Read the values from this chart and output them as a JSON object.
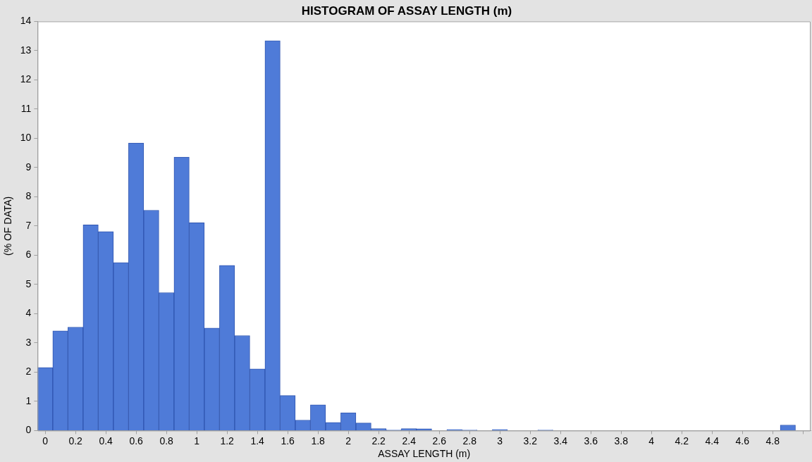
{
  "chart_data": {
    "type": "histogram",
    "title": "HISTOGRAM OF ASSAY LENGTH (m)",
    "xlabel": "ASSAY LENGTH (m)",
    "ylabel": "(% OF DATA)",
    "bins": [
      -0.05,
      0.05,
      0.15,
      0.25,
      0.35,
      0.45,
      0.55,
      0.65,
      0.75,
      0.85,
      0.95,
      1.05,
      1.15,
      1.25,
      1.35,
      1.45,
      1.55,
      1.65,
      1.75,
      1.85,
      1.95,
      2.05,
      2.15,
      2.25,
      2.35,
      2.45,
      2.55,
      2.65,
      2.75,
      2.85,
      2.95,
      3.05,
      3.15,
      3.25,
      3.35,
      3.45,
      3.55,
      3.65,
      3.75,
      3.85,
      3.95,
      4.05,
      4.15,
      4.25,
      4.35,
      4.45,
      4.55,
      4.65,
      4.75,
      4.85,
      4.95
    ],
    "values": [
      2.16,
      3.41,
      3.54,
      7.04,
      6.81,
      5.75,
      9.84,
      7.54,
      4.72,
      9.36,
      7.11,
      3.51,
      5.65,
      3.25,
      2.11,
      13.34,
      1.2,
      0.36,
      0.88,
      0.28,
      0.61,
      0.26,
      0.07,
      0.02,
      0.07,
      0.06,
      0,
      0.04,
      0.02,
      0,
      0.04,
      0,
      0,
      0.02,
      0,
      0,
      0,
      0,
      0,
      0,
      0,
      0,
      0,
      0,
      0,
      0,
      0,
      0,
      0,
      0.19
    ],
    "color": "#4f7bd8",
    "xlim": [
      -0.05,
      5.05
    ],
    "xticks": [
      0,
      0.2,
      0.4,
      0.6,
      0.8,
      1,
      1.2,
      1.4,
      1.6,
      1.8,
      2,
      2.2,
      2.4,
      2.6,
      2.8,
      3,
      3.2,
      3.4,
      3.6,
      3.8,
      4,
      4.2,
      4.4,
      4.6,
      4.8,
      {
        "value": 5,
        "label": null
      }
    ],
    "ylim": [
      0,
      14
    ],
    "yticks": [
      0,
      1,
      2,
      3,
      4,
      5,
      6,
      7,
      8,
      9,
      10,
      11,
      12,
      13,
      14
    ],
    "grid": false,
    "legend": false
  }
}
